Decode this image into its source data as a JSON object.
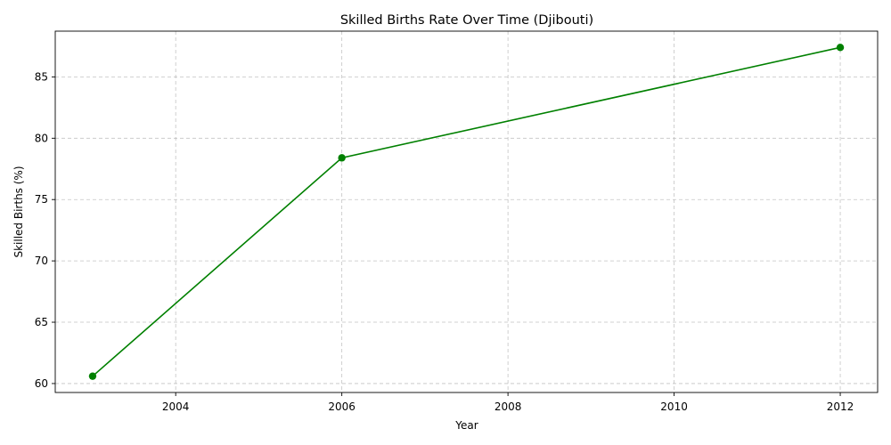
{
  "chart_data": {
    "type": "line",
    "title": "Skilled Births Rate Over Time (Djibouti)",
    "xlabel": "Year",
    "ylabel": "Skilled Births (%)",
    "x": [
      2003,
      2006,
      2012
    ],
    "series": [
      {
        "values": [
          60.6,
          78.4,
          87.4
        ],
        "color": "#008000",
        "marker": "circle"
      }
    ],
    "xlim": [
      2002.55,
      2012.45
    ],
    "ylim": [
      59.27,
      88.73
    ],
    "xticks": [
      2004,
      2006,
      2008,
      2010,
      2012
    ],
    "yticks": [
      60,
      65,
      70,
      75,
      80,
      85
    ],
    "grid": true
  }
}
